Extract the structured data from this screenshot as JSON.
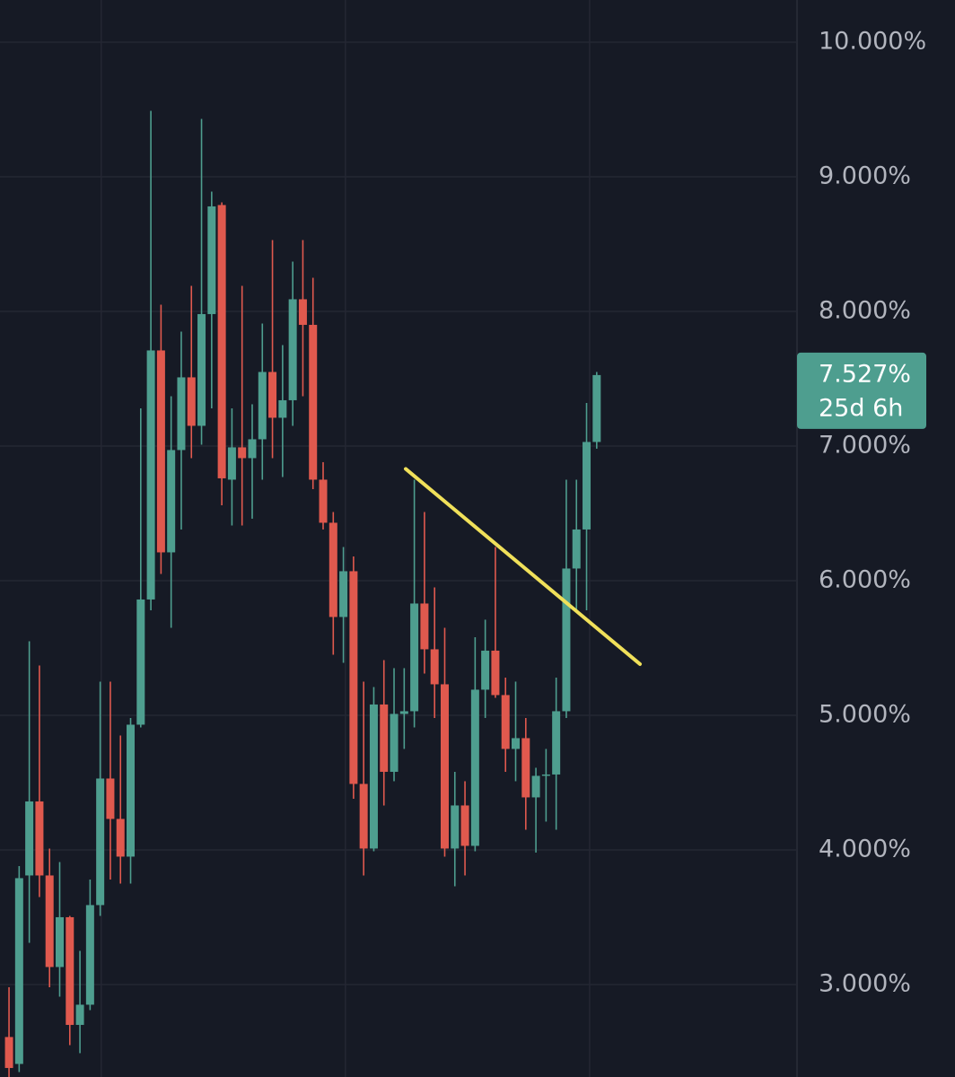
{
  "chart_data": {
    "type": "candlestick",
    "up_color": "#4e9e8f",
    "down_color": "#e0594e",
    "grid": true,
    "xlim": [
      -0.89,
      77.77
    ],
    "xticks": [
      9.1,
      33.2,
      57.3
    ],
    "ylim": [
      2.313,
      10.313
    ],
    "yticks": [
      {
        "value": 3,
        "label": "3.000%"
      },
      {
        "value": 4,
        "label": "4.000%"
      },
      {
        "value": 5,
        "label": "5.000%"
      },
      {
        "value": 6,
        "label": "6.000%"
      },
      {
        "value": 7,
        "label": "7.000%"
      },
      {
        "value": 8,
        "label": "8.000%"
      },
      {
        "value": 9,
        "label": "9.000%"
      },
      {
        "value": 10,
        "label": "10.000%"
      }
    ],
    "open": [
      2.61,
      2.41,
      3.81,
      4.36,
      3.81,
      3.13,
      3.5,
      2.7,
      2.85,
      3.59,
      4.53,
      4.23,
      3.95,
      4.93,
      5.86,
      7.71,
      6.21,
      6.97,
      7.51,
      7.15,
      7.98,
      8.79,
      6.75,
      6.99,
      6.91,
      7.05,
      7.55,
      7.21,
      7.34,
      8.09,
      7.9,
      6.75,
      6.43,
      5.73,
      6.07,
      4.49,
      4.01,
      5.08,
      4.58,
      5.01,
      5.03,
      5.83,
      5.49,
      5.23,
      4.01,
      4.33,
      4.03,
      5.19,
      5.48,
      5.15,
      4.75,
      4.83,
      4.39,
      4.55,
      4.56,
      5.03,
      6.09,
      6.38,
      7.03
    ],
    "high": [
      2.98,
      3.88,
      5.55,
      5.37,
      4.01,
      3.91,
      3.51,
      3.25,
      3.78,
      5.25,
      5.25,
      4.85,
      4.98,
      7.28,
      9.49,
      8.05,
      7.37,
      7.85,
      8.19,
      9.43,
      8.89,
      8.81,
      7.28,
      8.19,
      7.31,
      7.91,
      8.53,
      7.75,
      8.37,
      8.53,
      8.25,
      6.88,
      6.51,
      6.25,
      6.18,
      5.25,
      5.21,
      5.41,
      5.35,
      5.35,
      6.75,
      6.51,
      5.95,
      5.65,
      4.58,
      4.51,
      5.58,
      5.71,
      6.25,
      5.28,
      5.25,
      4.98,
      4.61,
      4.75,
      5.28,
      6.75,
      6.75,
      7.32,
      7.55
    ],
    "low": [
      2.31,
      2.35,
      3.31,
      3.65,
      2.98,
      2.91,
      2.55,
      2.49,
      2.81,
      3.51,
      3.78,
      3.75,
      3.75,
      4.91,
      5.78,
      6.05,
      5.65,
      6.38,
      6.91,
      7.01,
      7.28,
      6.56,
      6.41,
      6.41,
      6.46,
      6.75,
      6.91,
      6.77,
      7.15,
      7.37,
      6.68,
      6.38,
      5.45,
      5.39,
      4.38,
      3.81,
      3.99,
      4.33,
      4.51,
      4.75,
      4.91,
      5.31,
      4.98,
      3.95,
      3.73,
      3.81,
      3.99,
      4.98,
      5.13,
      4.58,
      4.51,
      4.15,
      3.98,
      4.21,
      4.15,
      4.98,
      5.78,
      5.78,
      6.98
    ],
    "close": [
      2.38,
      3.79,
      4.36,
      3.81,
      3.13,
      3.5,
      2.7,
      2.85,
      3.59,
      4.53,
      4.23,
      3.95,
      4.93,
      5.86,
      7.71,
      6.21,
      6.97,
      7.51,
      7.15,
      7.98,
      8.78,
      6.76,
      6.99,
      6.91,
      7.05,
      7.55,
      7.21,
      7.34,
      8.09,
      7.9,
      6.75,
      6.43,
      5.73,
      6.07,
      4.49,
      4.01,
      5.08,
      4.58,
      5.01,
      5.03,
      5.83,
      5.49,
      5.23,
      4.01,
      4.33,
      4.03,
      5.19,
      5.48,
      5.15,
      4.75,
      4.83,
      4.39,
      4.55,
      4.56,
      5.03,
      6.09,
      6.38,
      7.03,
      7.527
    ],
    "last_price": {
      "value": 7.527,
      "label": "7.527%"
    },
    "countdown": "25d 6h",
    "trendline": {
      "color": "#f0e05a",
      "x": [
        39.15,
        62.27
      ],
      "y": [
        6.83,
        5.38
      ]
    }
  }
}
